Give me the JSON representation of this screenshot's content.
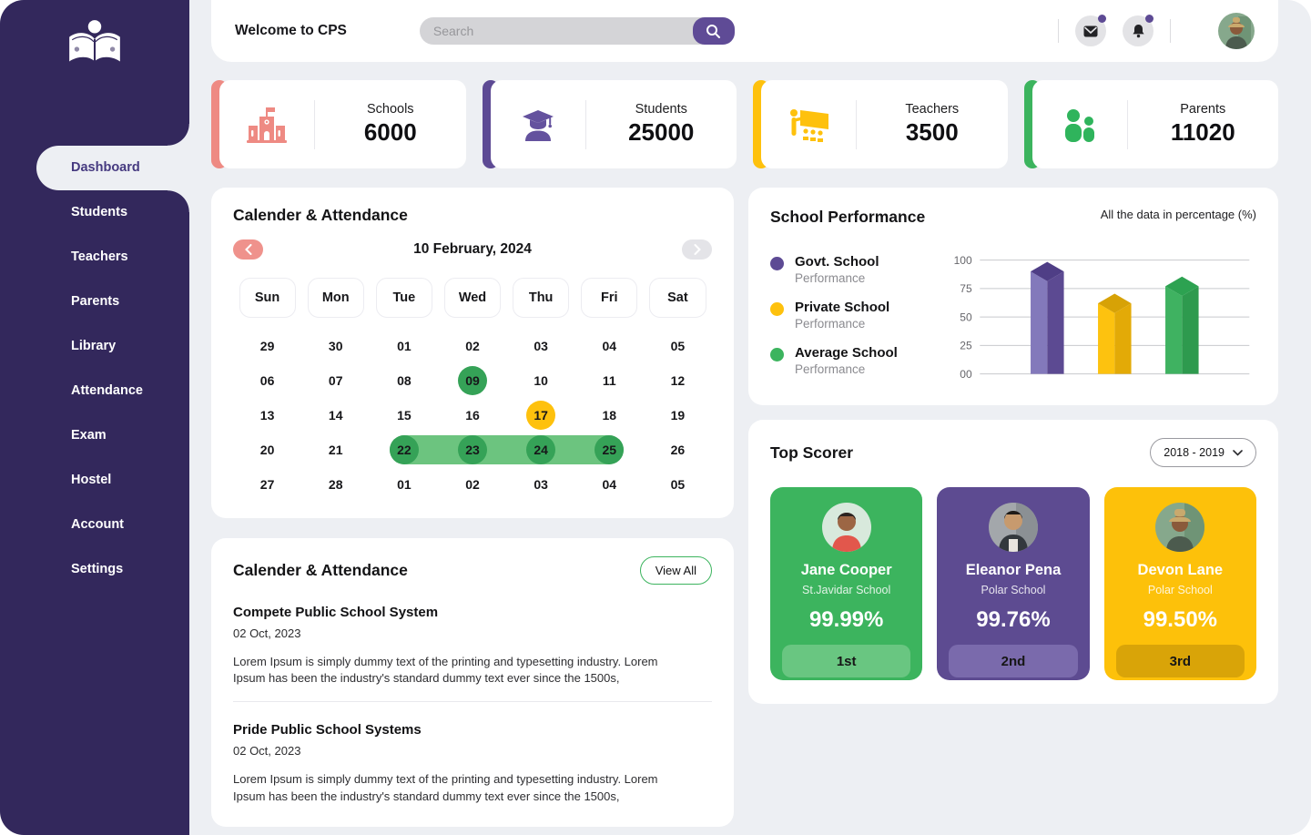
{
  "header": {
    "welcome": "Welcome to CPS",
    "search_placeholder": "Search",
    "icons": [
      "mail-icon",
      "bell-icon"
    ],
    "badge_color": "#5D4A94"
  },
  "sidebar": {
    "items": [
      {
        "label": "Dashboard",
        "active": true
      },
      {
        "label": "Students",
        "active": false
      },
      {
        "label": "Teachers",
        "active": false
      },
      {
        "label": "Parents",
        "active": false
      },
      {
        "label": "Library",
        "active": false
      },
      {
        "label": "Attendance",
        "active": false
      },
      {
        "label": "Exam",
        "active": false
      },
      {
        "label": "Hostel",
        "active": false
      },
      {
        "label": "Account",
        "active": false
      },
      {
        "label": "Settings",
        "active": false
      }
    ],
    "bg_color": "#33285C"
  },
  "stats": [
    {
      "label": "Schools",
      "value": "6000",
      "color": "#EE8A83",
      "icon": "school-building-icon"
    },
    {
      "label": "Students",
      "value": "25000",
      "color": "#5D4A94",
      "icon": "graduate-student-icon"
    },
    {
      "label": "Teachers",
      "value": "3500",
      "color": "#FEC10D",
      "icon": "teacher-board-icon"
    },
    {
      "label": "Parents",
      "value": "11020",
      "color": "#3CB45E",
      "icon": "parents-icon"
    }
  ],
  "calendar": {
    "title": "Calender & Attendance",
    "current": "10 February, 2024",
    "days": [
      "Sun",
      "Mon",
      "Tue",
      "Wed",
      "Thu",
      "Fri",
      "Sat"
    ],
    "cells": [
      {
        "d": "29"
      },
      {
        "d": "30"
      },
      {
        "d": "01"
      },
      {
        "d": "02"
      },
      {
        "d": "03"
      },
      {
        "d": "04"
      },
      {
        "d": "05"
      },
      {
        "d": "06"
      },
      {
        "d": "07"
      },
      {
        "d": "08"
      },
      {
        "d": "09",
        "mark": "mark-green"
      },
      {
        "d": "10"
      },
      {
        "d": "11"
      },
      {
        "d": "12"
      },
      {
        "d": "13"
      },
      {
        "d": "14"
      },
      {
        "d": "15"
      },
      {
        "d": "16"
      },
      {
        "d": "17",
        "mark": "mark-yellow"
      },
      {
        "d": "18"
      },
      {
        "d": "19"
      },
      {
        "d": "20"
      },
      {
        "d": "21"
      },
      {
        "d": "22",
        "mark": "range range-start"
      },
      {
        "d": "23",
        "mark": "range range-mid"
      },
      {
        "d": "24",
        "mark": "range range-mid"
      },
      {
        "d": "25",
        "mark": "range range-end"
      },
      {
        "d": "26"
      },
      {
        "d": "27"
      },
      {
        "d": "28"
      },
      {
        "d": "01"
      },
      {
        "d": "02"
      },
      {
        "d": "03"
      },
      {
        "d": "04"
      },
      {
        "d": "05"
      }
    ],
    "mark_colors": {
      "green": "#35A257",
      "yellow": "#FEC10D",
      "range_fill": "#6CC47F"
    }
  },
  "performance": {
    "title": "School Performance",
    "note": "All the data in percentage (%)",
    "legend": [
      {
        "label": "Govt. School",
        "sub": "Performance",
        "color": "#5D4A94"
      },
      {
        "label": "Private School",
        "sub": "Performance",
        "color": "#FEC10D"
      },
      {
        "label": "Average School",
        "sub": "Performance",
        "color": "#3CB45E"
      }
    ]
  },
  "chart_data": {
    "type": "bar",
    "style": "3d-column",
    "title": "School Performance",
    "note": "All the data in percentage (%)",
    "categories": [
      "Govt. School Performance",
      "Private School Performance",
      "Average School Performance"
    ],
    "values": [
      90,
      62,
      77
    ],
    "ylim": [
      0,
      100
    ],
    "yticks": [
      100,
      75,
      50,
      25,
      0
    ],
    "ytick_labels": [
      "100",
      "75",
      "50",
      "25",
      "00"
    ],
    "grid": true,
    "legend_position": "left",
    "colors": [
      {
        "front": "#8379BB",
        "side": "#5C4A92",
        "top": "#4F3E86"
      },
      {
        "front": "#FDC20F",
        "side": "#E3AA07",
        "top": "#D7A206"
      },
      {
        "front": "#3FB261",
        "side": "#2E9A4E",
        "top": "#2DA251"
      }
    ]
  },
  "top_scorer": {
    "title": "Top Scorer",
    "year_filter": "2018 - 2019",
    "scorers": [
      {
        "name": "Jane Cooper",
        "school": "St.Javidar School",
        "score": "99.99%",
        "rank": "1st",
        "color": "#3CB45E",
        "rank_color": "#69C681"
      },
      {
        "name": "Eleanor Pena",
        "school": "Polar School",
        "score": "99.76%",
        "rank": "2nd",
        "color": "#5D4B91",
        "rank_color": "#7A6AAC"
      },
      {
        "name": "Devon Lane",
        "school": "Polar School",
        "score": "99.50%",
        "rank": "3rd",
        "color": "#FDC10A",
        "rank_color": "#D9A408"
      }
    ]
  },
  "news": {
    "title": "Calender & Attendance",
    "view_all": "View All",
    "items": [
      {
        "title": "Compete Public School System",
        "date": "02 Oct, 2023",
        "body": "Lorem Ipsum is simply dummy text of the printing and  typesetting industry. Lorem Ipsum has been the industry's standard dummy  text ever since the 1500s,"
      },
      {
        "title": "Pride Public School Systems",
        "date": "02 Oct, 2023",
        "body": "Lorem Ipsum is simply dummy text of the printing and  typesetting industry. Lorem Ipsum has been the industry's standard dummy  text ever since the 1500s,"
      }
    ]
  }
}
